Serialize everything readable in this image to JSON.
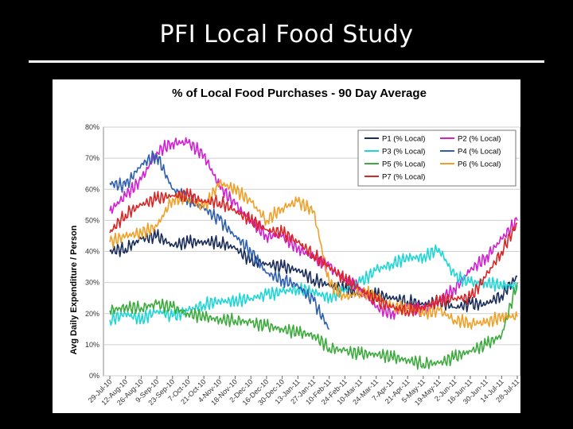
{
  "slide": {
    "title": "PFI Local Food Study"
  },
  "chart_data": {
    "type": "line",
    "title": "% of Local Food Purchases - 90 Day Average",
    "xlabel": "",
    "ylabel": "Avg Daily Expenditure / Person",
    "ylim": [
      0,
      80
    ],
    "yticks": [
      "0%",
      "10%",
      "20%",
      "30%",
      "40%",
      "50%",
      "60%",
      "70%",
      "80%"
    ],
    "grid": "horizontal",
    "legend_position": "top-right",
    "x_dates": [
      "2010-07-29",
      "2010-08-12",
      "2010-08-26",
      "2010-09-09",
      "2010-09-23",
      "2010-10-07",
      "2010-10-21",
      "2010-11-04",
      "2010-11-18",
      "2010-12-02",
      "2010-12-16",
      "2010-12-30",
      "2011-01-13",
      "2011-01-27",
      "2011-02-10",
      "2011-02-24",
      "2011-03-10",
      "2011-03-24",
      "2011-04-07",
      "2011-04-21",
      "2011-05-05",
      "2011-05-19",
      "2011-06-02",
      "2011-06-16",
      "2011-06-30",
      "2011-07-14",
      "2011-07-28"
    ],
    "xtick_labels": [
      "29-Jul-10",
      "12-Aug-10",
      "26-Aug-10",
      "9-Sep-10",
      "23-Sep-10",
      "7-Oct-10",
      "21-Oct-10",
      "4-Nov-10",
      "18-Nov-10",
      "2-Dec-10",
      "16-Dec-10",
      "30-Dec-10",
      "13-Jan-11",
      "27-Jan-11",
      "10-Feb-11",
      "24-Feb-11",
      "10-Mar-11",
      "24-Mar-11",
      "7-Apr-11",
      "21-Apr-11",
      "5-May-11",
      "19-May-11",
      "2-Jun-11",
      "16-Jun-11",
      "30-Jun-11",
      "14-Jul-11",
      "28-Jul-11"
    ],
    "series": [
      {
        "name": "P1 (% Local)",
        "color": "#1a2d5a",
        "values": [
          40,
          41,
          44,
          45,
          42,
          43,
          43,
          43,
          41,
          37,
          36,
          35,
          34,
          31,
          29,
          28,
          26,
          26,
          25,
          24,
          23,
          24,
          22,
          23,
          23,
          26,
          32
        ]
      },
      {
        "name": "P2 (% Local)",
        "color": "#d21fd2",
        "values": [
          53,
          58,
          63,
          72,
          75,
          75,
          71,
          61,
          55,
          50,
          45,
          45,
          41,
          38,
          35,
          31,
          28,
          22,
          20,
          22,
          21,
          24,
          28,
          34,
          38,
          44,
          50
        ]
      },
      {
        "name": "P3 (% Local)",
        "color": "#1fd6d6",
        "values": [
          18,
          20,
          18,
          21,
          19,
          21,
          23,
          24,
          24,
          25,
          26,
          27,
          28,
          27,
          25,
          28,
          30,
          34,
          36,
          38,
          38,
          41,
          32,
          30,
          30,
          29,
          29
        ]
      },
      {
        "name": "P4 (% Local)",
        "color": "#2e5fb0",
        "values": [
          62,
          61,
          68,
          71,
          60,
          57,
          54,
          50,
          45,
          40,
          33,
          31,
          29,
          24,
          15,
          null,
          null,
          null,
          null,
          null,
          null,
          null,
          null,
          null,
          null,
          null,
          null
        ]
      },
      {
        "name": "P5 (% Local)",
        "color": "#3caa3c",
        "values": [
          21,
          22,
          22,
          23,
          22,
          20,
          19,
          18,
          18,
          17,
          16,
          15,
          14,
          13,
          9,
          8,
          7,
          7,
          6,
          5,
          4,
          4,
          6,
          8,
          10,
          13,
          30
        ]
      },
      {
        "name": "P6 (% Local)",
        "color": "#f0a028",
        "values": [
          43,
          45,
          46,
          48,
          57,
          57,
          54,
          62,
          60,
          56,
          50,
          54,
          56,
          53,
          30,
          25,
          27,
          26,
          22,
          22,
          20,
          21,
          18,
          17,
          17,
          19,
          19
        ]
      },
      {
        "name": "P7 (% Local)",
        "color": "#d92525",
        "values": [
          46,
          52,
          55,
          57,
          58,
          58,
          56,
          56,
          53,
          50,
          47,
          46,
          43,
          39,
          35,
          31,
          28,
          24,
          22,
          21,
          22,
          24,
          25,
          25,
          32,
          40,
          49
        ]
      }
    ]
  }
}
